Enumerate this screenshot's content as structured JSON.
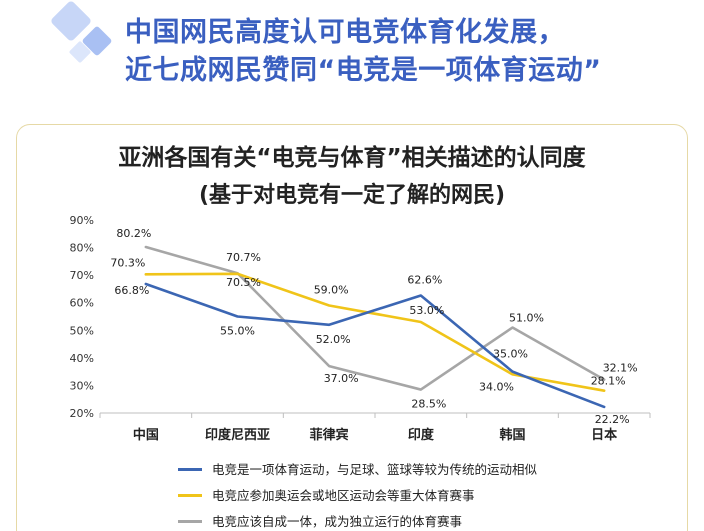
{
  "header": {
    "line1": "中国网民高度认可电竞体育化发展，",
    "line2": "近七成网民赞同“电竞是一项体育运动”"
  },
  "chart_data": {
    "type": "line",
    "title": "亚洲各国有关“电竞与体育”相关描述的认同度",
    "subtitle": "(基于对电竞有一定了解的网民)",
    "categories": [
      "中国",
      "印度尼西亚",
      "菲律宾",
      "印度",
      "韩国",
      "日本"
    ],
    "yticks": [
      "20%",
      "30%",
      "40%",
      "50%",
      "60%",
      "70%",
      "80%",
      "90%"
    ],
    "ylim": [
      20,
      90
    ],
    "series": [
      {
        "name": "电竞是一项体育运动，与足球、篮球等较为传统的运动相似",
        "color": "#3b66b3",
        "values": [
          66.8,
          55.0,
          52.0,
          62.6,
          35.0,
          22.2
        ],
        "labels": [
          "66.8%",
          "55.0%",
          "52.0%",
          "62.6%",
          "35.0%",
          "22.2%"
        ]
      },
      {
        "name": "电竞应参加奥运会或地区运动会等重大体育赛事",
        "color": "#f0c419",
        "values": [
          70.3,
          70.5,
          59.0,
          53.0,
          34.0,
          28.1
        ],
        "labels": [
          "70.3%",
          "70.5%",
          "59.0%",
          "53.0%",
          "34.0%",
          "28.1%"
        ]
      },
      {
        "name": "电竞应该自成一体，成为独立运行的体育赛事",
        "color": "#a6a6a6",
        "values": [
          80.2,
          70.7,
          37.0,
          28.5,
          51.0,
          32.1
        ],
        "labels": [
          "80.2%",
          "70.7%",
          "37.0%",
          "28.5%",
          "51.0%",
          "32.1%"
        ]
      }
    ]
  }
}
